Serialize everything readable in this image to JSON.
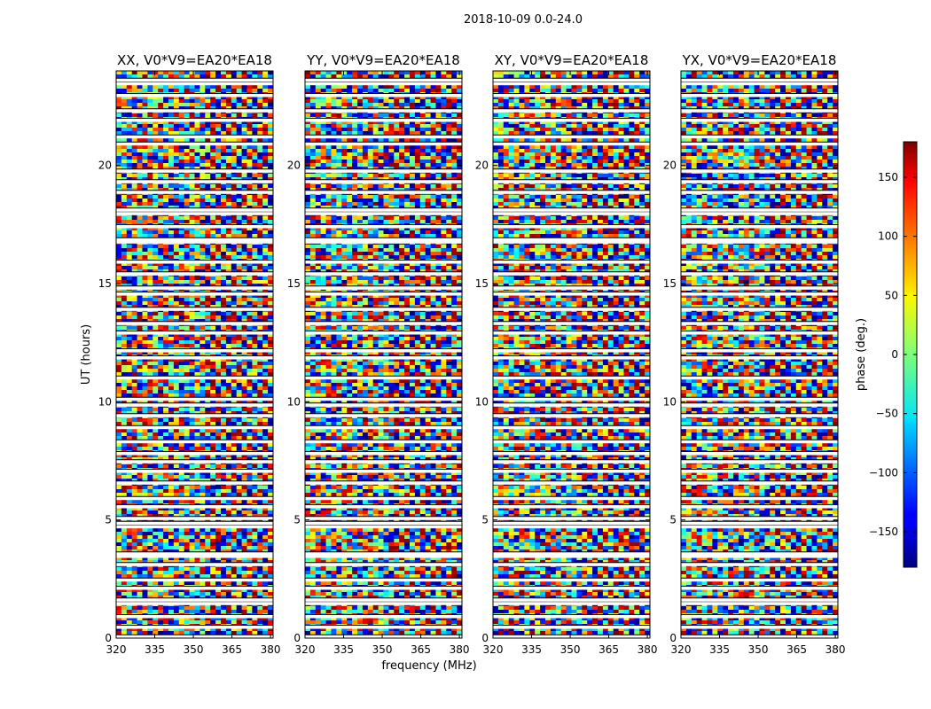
{
  "figure": {
    "suptitle": "2018-10-09 0.0-24.0"
  },
  "chart_data": {
    "type": "heatmap",
    "title": "2018-10-09 0.0-24.0",
    "xlabel": "frequency (MHz)",
    "ylabel": "UT (hours)",
    "xlim": [
      320,
      381
    ],
    "ylim": [
      0,
      24
    ],
    "x_ticks": [
      320,
      335,
      350,
      365,
      380
    ],
    "y_ticks": [
      0,
      5,
      10,
      15,
      20
    ],
    "panels": [
      {
        "title": "XX, V0*V9=EA20*EA18",
        "polarization": "XX"
      },
      {
        "title": "YY, V0*V9=EA20*EA18",
        "polarization": "YY"
      },
      {
        "title": "XY, V0*V9=EA20*EA18",
        "polarization": "XY"
      },
      {
        "title": "YX, V0*V9=EA20*EA18",
        "polarization": "YX"
      }
    ],
    "colorbar": {
      "label": "phase (deg.)",
      "range": [
        -180,
        180
      ],
      "ticks": [
        -150,
        -100,
        -50,
        0,
        50,
        100,
        150
      ],
      "tick_labels": [
        "−150",
        "−100",
        "−50",
        "0",
        "50",
        "100",
        "150"
      ],
      "colormap": "jet"
    },
    "flagged_gaps_ut": [
      0.05,
      0.45,
      0.9,
      1.45,
      1.6,
      2.1,
      2.45,
      3.1,
      3.45,
      3.55,
      4.7,
      4.85,
      5.05,
      5.55,
      5.9,
      6.55,
      7.05,
      7.45,
      7.8,
      8.3,
      8.9,
      9.4,
      9.85,
      10.1,
      11.0,
      11.85,
      12.15,
      12.9,
      13.3,
      13.9,
      14.55,
      14.8,
      15.4,
      15.9,
      16.75,
      16.85,
      17.4,
      17.95,
      18.1,
      18.85,
      19.3,
      19.75,
      20.9,
      21.2,
      21.9,
      22.3,
      22.95,
      23.45,
      23.6
    ],
    "colors": {
      "gap": "#ffffff",
      "flag_line": "#000000",
      "axes": "#000000"
    }
  }
}
